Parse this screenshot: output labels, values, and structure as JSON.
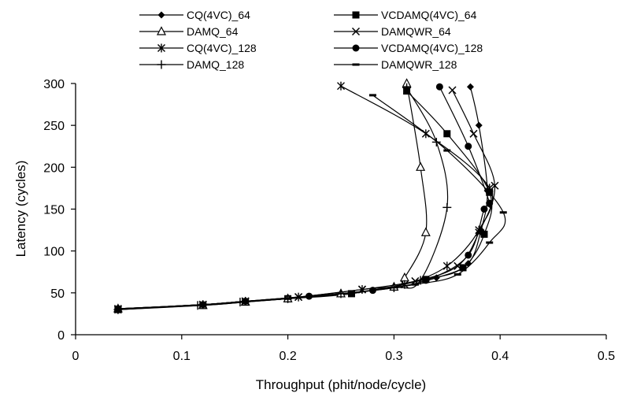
{
  "chart_data": {
    "type": "line",
    "title": "",
    "xlabel": "Throughput (phit/node/cycle)",
    "ylabel": "Latency (cycles)",
    "xlim": [
      0,
      0.5
    ],
    "ylim": [
      0,
      300
    ],
    "xticks": [
      0,
      0.1,
      0.2,
      0.3,
      0.4,
      0.5
    ],
    "xtick_labels": [
      "0",
      "0.1",
      "0.2",
      "0.3",
      "0.4",
      "0.5"
    ],
    "yticks": [
      0,
      50,
      100,
      150,
      200,
      250,
      300
    ],
    "ytick_labels": [
      "0",
      "50",
      "100",
      "150",
      "200",
      "250",
      "300"
    ],
    "grid": false,
    "legend_position": "top",
    "series": [
      {
        "name": "CQ(4VC)_64",
        "marker": "diamond",
        "points": [
          [
            0.04,
            31
          ],
          [
            0.12,
            36
          ],
          [
            0.16,
            40
          ],
          [
            0.2,
            43
          ],
          [
            0.25,
            49
          ],
          [
            0.3,
            56
          ],
          [
            0.34,
            68
          ],
          [
            0.37,
            85
          ],
          [
            0.382,
            125
          ],
          [
            0.388,
            172
          ],
          [
            0.38,
            250
          ],
          [
            0.372,
            296
          ]
        ]
      },
      {
        "name": "VCDAMQ(4VC)_64",
        "marker": "square",
        "points": [
          [
            0.04,
            30
          ],
          [
            0.12,
            35
          ],
          [
            0.16,
            39
          ],
          [
            0.2,
            43
          ],
          [
            0.26,
            49
          ],
          [
            0.33,
            66
          ],
          [
            0.365,
            80
          ],
          [
            0.385,
            120
          ],
          [
            0.39,
            170
          ],
          [
            0.35,
            240
          ],
          [
            0.312,
            291
          ]
        ]
      },
      {
        "name": "DAMQ_64",
        "marker": "triangle",
        "points": [
          [
            0.04,
            31
          ],
          [
            0.12,
            35
          ],
          [
            0.16,
            39
          ],
          [
            0.2,
            43
          ],
          [
            0.25,
            49
          ],
          [
            0.3,
            57
          ],
          [
            0.31,
            68
          ],
          [
            0.33,
            122
          ],
          [
            0.325,
            200
          ],
          [
            0.312,
            300
          ]
        ]
      },
      {
        "name": "DAMQWR_64",
        "marker": "x",
        "points": [
          [
            0.04,
            31
          ],
          [
            0.12,
            36
          ],
          [
            0.16,
            40
          ],
          [
            0.21,
            45
          ],
          [
            0.27,
            54
          ],
          [
            0.32,
            64
          ],
          [
            0.36,
            82
          ],
          [
            0.38,
            122
          ],
          [
            0.395,
            178
          ],
          [
            0.375,
            240
          ],
          [
            0.355,
            292
          ]
        ]
      },
      {
        "name": "CQ(4VC)_128",
        "marker": "star",
        "points": [
          [
            0.04,
            30
          ],
          [
            0.12,
            36
          ],
          [
            0.16,
            40
          ],
          [
            0.21,
            45
          ],
          [
            0.27,
            54
          ],
          [
            0.31,
            60
          ],
          [
            0.35,
            82
          ],
          [
            0.38,
            125
          ],
          [
            0.39,
            175
          ],
          [
            0.33,
            240
          ],
          [
            0.25,
            297
          ]
        ]
      },
      {
        "name": "VCDAMQ(4VC)_128",
        "marker": "circle",
        "points": [
          [
            0.04,
            31
          ],
          [
            0.12,
            36
          ],
          [
            0.16,
            40
          ],
          [
            0.22,
            46
          ],
          [
            0.28,
            53
          ],
          [
            0.33,
            65
          ],
          [
            0.37,
            95
          ],
          [
            0.385,
            150
          ],
          [
            0.39,
            157
          ],
          [
            0.37,
            225
          ],
          [
            0.343,
            296
          ]
        ]
      },
      {
        "name": "DAMQ_128",
        "marker": "plus",
        "points": [
          [
            0.04,
            30
          ],
          [
            0.115,
            35
          ],
          [
            0.155,
            39
          ],
          [
            0.2,
            43
          ],
          [
            0.25,
            49
          ],
          [
            0.3,
            56
          ],
          [
            0.325,
            65
          ],
          [
            0.35,
            152
          ],
          [
            0.34,
            230
          ],
          [
            0.312,
            295
          ]
        ]
      },
      {
        "name": "DAMQWR_128",
        "marker": "dash",
        "points": [
          [
            0.04,
            31
          ],
          [
            0.12,
            36
          ],
          [
            0.16,
            40
          ],
          [
            0.2,
            43
          ],
          [
            0.26,
            50
          ],
          [
            0.32,
            60
          ],
          [
            0.36,
            72
          ],
          [
            0.39,
            110
          ],
          [
            0.403,
            146
          ],
          [
            0.35,
            220
          ],
          [
            0.28,
            286
          ]
        ]
      }
    ]
  }
}
